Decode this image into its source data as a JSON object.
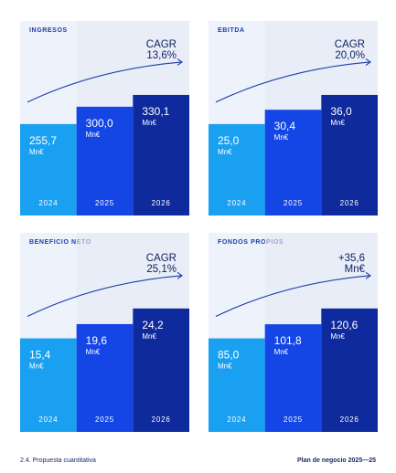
{
  "charts": [
    {
      "title": "INGRESOS",
      "chart_data": {
        "type": "bar",
        "categories": [
          "2024",
          "2025",
          "2026"
        ],
        "values": [
          255.7,
          300.0,
          330.1
        ],
        "labels": [
          "255,7",
          "300,0",
          "330,1"
        ],
        "unit": "Mn€",
        "annotation": [
          "CAGR",
          "13,6%"
        ]
      }
    },
    {
      "title": "EBITDA",
      "chart_data": {
        "type": "bar",
        "categories": [
          "2024",
          "2025",
          "2026"
        ],
        "values": [
          25.0,
          30.4,
          36.0
        ],
        "labels": [
          "25,0",
          "30,4",
          "36,0"
        ],
        "unit": "Mn€",
        "annotation": [
          "CAGR",
          "20,0%"
        ]
      }
    },
    {
      "title": "BENEFICIO NETO",
      "chart_data": {
        "type": "bar",
        "categories": [
          "2024",
          "2025",
          "2026"
        ],
        "values": [
          15.4,
          19.6,
          24.2
        ],
        "labels": [
          "15,4",
          "19,6",
          "24,2"
        ],
        "unit": "Mn€",
        "annotation": [
          "CAGR",
          "25,1%"
        ]
      }
    },
    {
      "title": "FONDOS PROPIOS",
      "chart_data": {
        "type": "bar",
        "categories": [
          "2024",
          "2025",
          "2026"
        ],
        "values": [
          85.0,
          101.8,
          120.6
        ],
        "labels": [
          "85,0",
          "101,8",
          "120,6"
        ],
        "unit": "Mn€",
        "annotation": [
          "+35,6",
          "Mn€"
        ]
      }
    }
  ],
  "colors": {
    "bar1": "#1aa0f0",
    "bar2": "#1446e6",
    "bar3": "#0f2a9c",
    "accent": "#1b3fa8"
  },
  "footer": {
    "left": "2.4. Propuesta cuantitativa",
    "right": "Plan de negocio 2025—25"
  }
}
